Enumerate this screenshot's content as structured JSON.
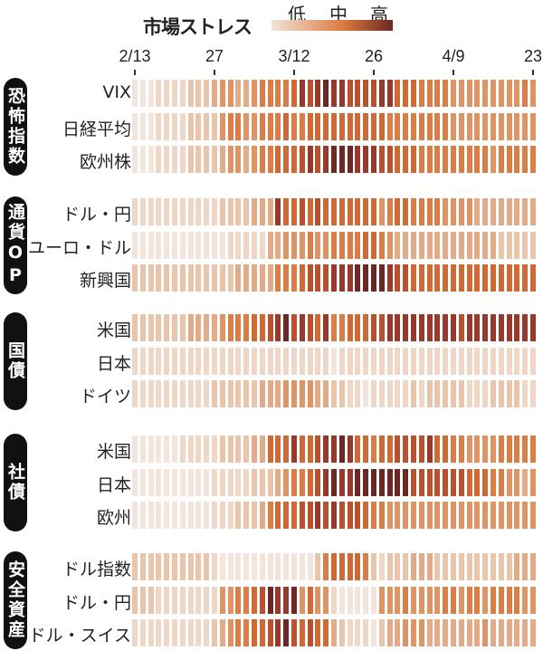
{
  "chart_data": {
    "type": "heatmap",
    "title": "市場ストレス",
    "legend": {
      "labels": [
        "低",
        "中",
        "高"
      ],
      "colors": [
        "#f3e4d9",
        "#d9793f",
        "#6b2824"
      ],
      "placement": "top-right"
    },
    "x_ticks": [
      {
        "index": 0,
        "label": "2/13"
      },
      {
        "index": 10,
        "label": "27"
      },
      {
        "index": 20,
        "label": "3/12"
      },
      {
        "index": 30,
        "label": "26"
      },
      {
        "index": 40,
        "label": "4/9"
      },
      {
        "index": 50,
        "label": "23"
      }
    ],
    "n_days": 51,
    "value_scale": "0 (low stress) to 9 (high stress)",
    "groups": [
      {
        "label": "恐怖指数",
        "rows": [
          {
            "label": "VIX",
            "values": "000111122234433455556878988777788666555544444444454"
          },
          {
            "label": "日経平均",
            "values": "000111122224554455565566666666665555555544444444444"
          },
          {
            "label": "欧州株",
            "values": "000111122223443455666787899988877666555555555455555"
          }
        ]
      },
      {
        "label": "通貨OP",
        "rows": [
          {
            "label": "ドル・円",
            "values": "111111111112222333866767666666645665555444433333333"
          },
          {
            "label": "ユーロ・ドル",
            "values": "000000000000111113344454455556654333333333333322222"
          },
          {
            "label": "新興国",
            "values": "222222222222233333555677788899998776666666666666666"
          }
        ]
      },
      {
        "label": "国債",
        "rows": [
          {
            "label": "米国",
            "values": "222222233334555667897876855666778888888887888888888"
          },
          {
            "label": "日本",
            "values": "111111111111111111111111101111111111111111111111111"
          },
          {
            "label": "ドイツ",
            "values": "111111111122222233344443322110111112122222111222211"
          }
        ]
      },
      {
        "label": "社債",
        "rows": [
          {
            "label": "米国",
            "values": "000000111112222336668667889866566777786655444455555"
          },
          {
            "label": "日本",
            "values": "000000000011111222345567898899999997777777666554434"
          },
          {
            "label": "欧州",
            "values": "000000000011122235666778787776554444444444444444444"
          }
        ]
      },
      {
        "label": "安全資産",
        "rows": [
          {
            "label": "ドル指数",
            "values": "222222222210000000000002566665212223332222222222333"
          },
          {
            "label": "ドル・円",
            "values": "222111111114455679889464410000044454444554554555544"
          },
          {
            "label": "ドル・スイス",
            "values": "111111111123455667897676632111023344433333334333333"
          }
        ]
      }
    ]
  }
}
